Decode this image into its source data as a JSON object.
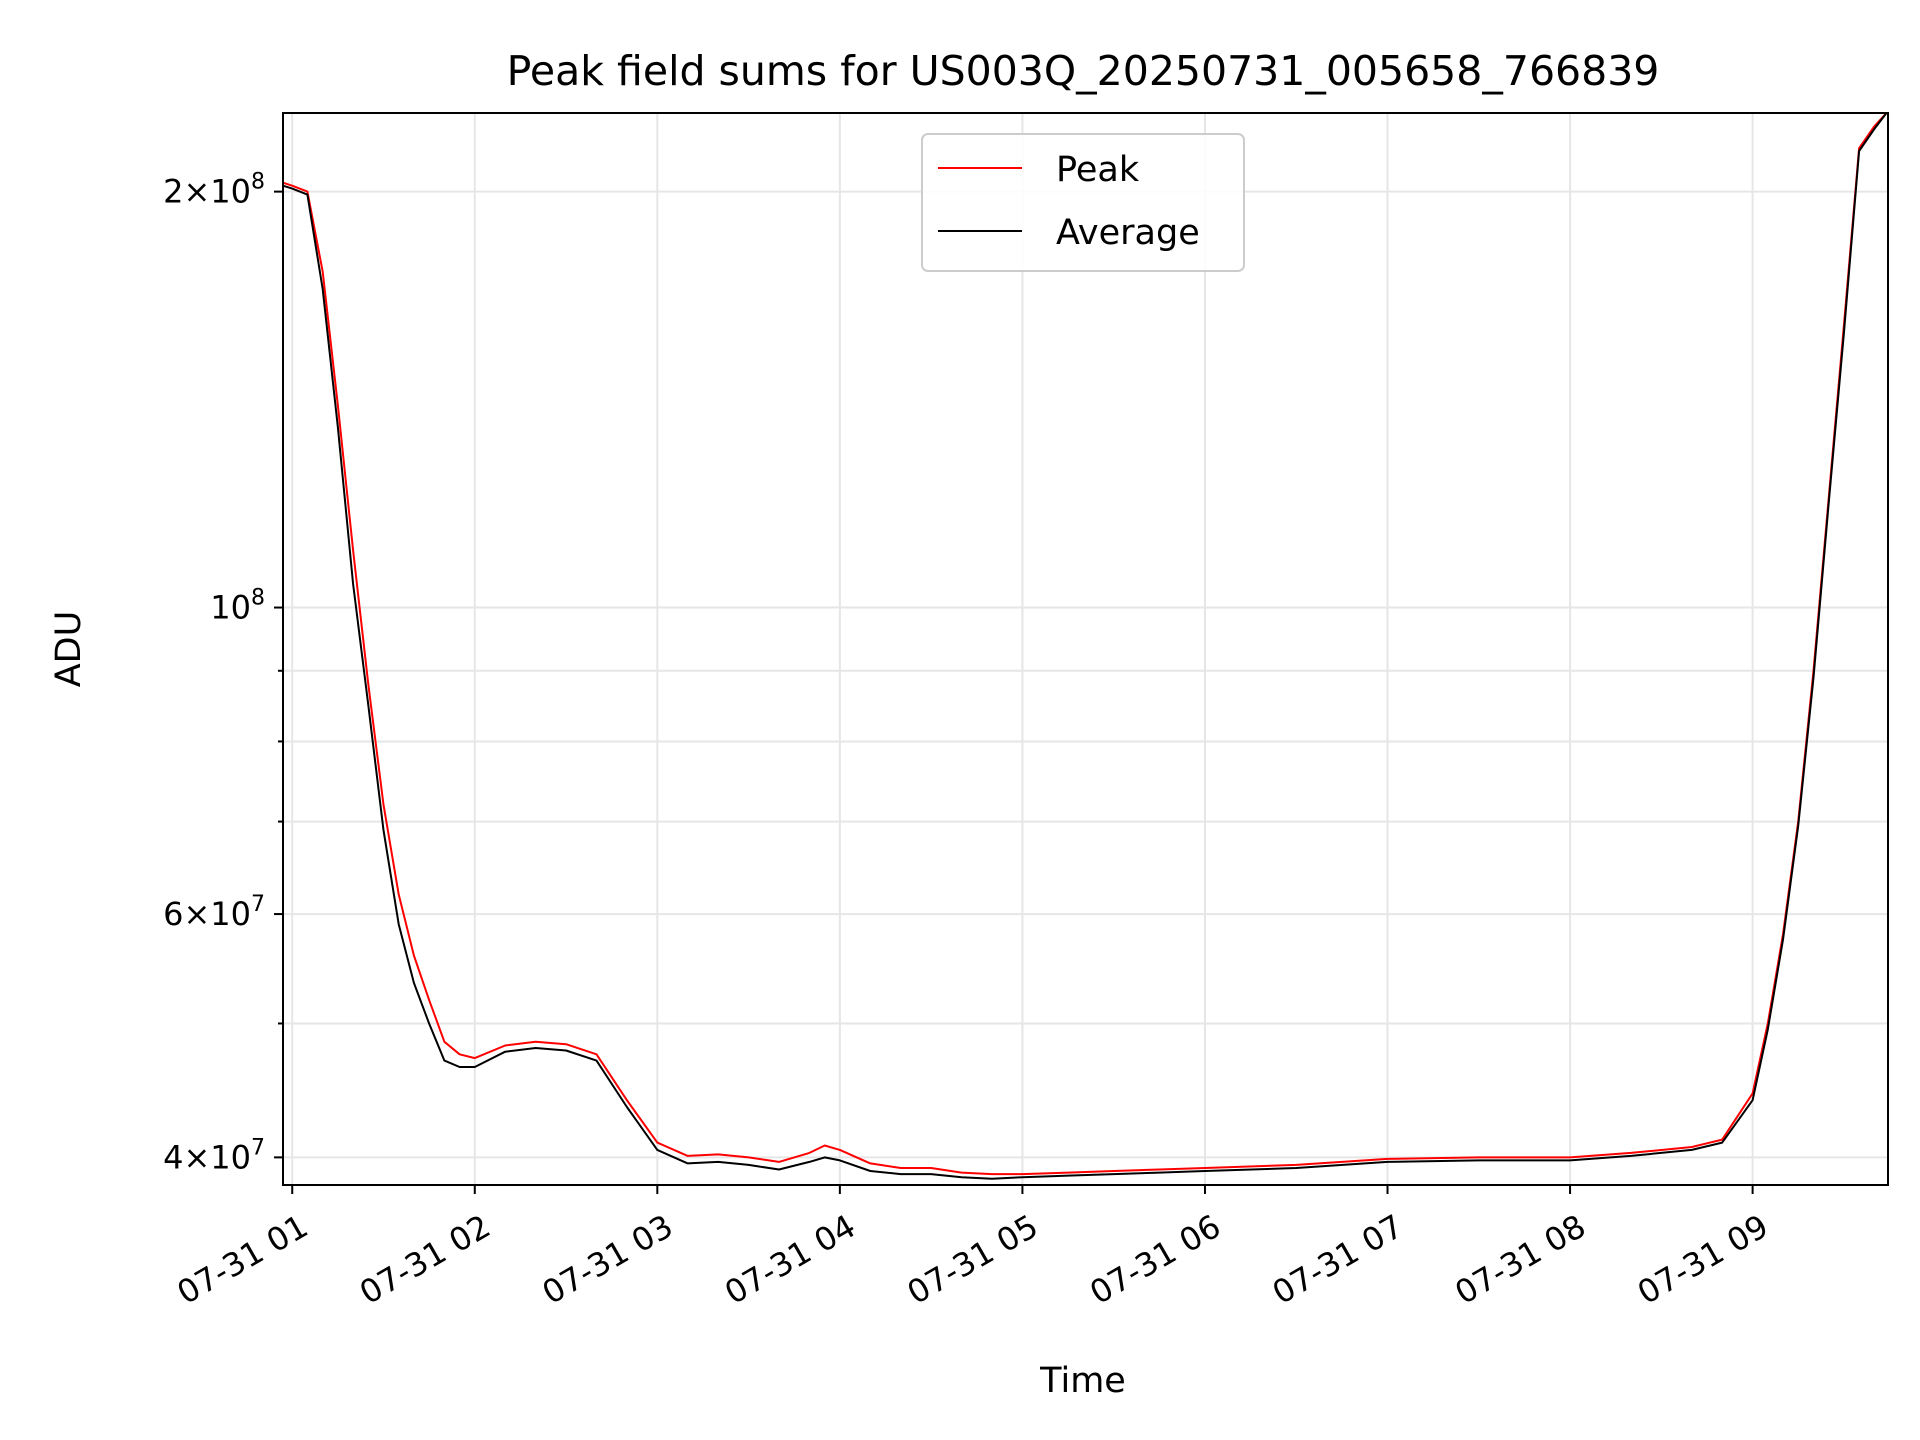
{
  "chart_data": {
    "type": "line",
    "title": "Peak field sums for US003Q_20250731_005658_766839",
    "xlabel": "Time",
    "ylabel": "ADU",
    "yscale": "log",
    "ylim": [
      38200000,
      228000000
    ],
    "xlim": [
      "2025-07-31 00:56:58",
      "2025-07-31 09:44:30"
    ],
    "grid": true,
    "legend_position": "top-center",
    "x_ticks": [
      {
        "t": "2025-07-31 01:00",
        "label": "07-31 01"
      },
      {
        "t": "2025-07-31 02:00",
        "label": "07-31 02"
      },
      {
        "t": "2025-07-31 03:00",
        "label": "07-31 03"
      },
      {
        "t": "2025-07-31 04:00",
        "label": "07-31 04"
      },
      {
        "t": "2025-07-31 05:00",
        "label": "07-31 05"
      },
      {
        "t": "2025-07-31 06:00",
        "label": "07-31 06"
      },
      {
        "t": "2025-07-31 07:00",
        "label": "07-31 07"
      },
      {
        "t": "2025-07-31 08:00",
        "label": "07-31 08"
      },
      {
        "t": "2025-07-31 09:00",
        "label": "07-31 09"
      }
    ],
    "y_ticks_major": [
      {
        "value": 40000000,
        "mant": "4",
        "sup": "7"
      },
      {
        "value": 60000000,
        "mant": "6",
        "sup": "7"
      },
      {
        "value": 100000000,
        "mant": "",
        "sup": "8"
      },
      {
        "value": 200000000,
        "mant": "2",
        "sup": "8"
      }
    ],
    "y_ticks_minor": [
      50000000,
      70000000,
      80000000,
      90000000
    ],
    "series": [
      {
        "name": "Peak",
        "color": "#ff0000",
        "x": [
          "2025-07-31 00:56:58",
          "2025-07-31 01:00",
          "2025-07-31 01:05",
          "2025-07-31 01:10",
          "2025-07-31 01:15",
          "2025-07-31 01:20",
          "2025-07-31 01:25",
          "2025-07-31 01:30",
          "2025-07-31 01:35",
          "2025-07-31 01:40",
          "2025-07-31 01:45",
          "2025-07-31 01:50",
          "2025-07-31 01:55",
          "2025-07-31 02:00",
          "2025-07-31 02:10",
          "2025-07-31 02:20",
          "2025-07-31 02:30",
          "2025-07-31 02:40",
          "2025-07-31 02:50",
          "2025-07-31 03:00",
          "2025-07-31 03:10",
          "2025-07-31 03:20",
          "2025-07-31 03:30",
          "2025-07-31 03:40",
          "2025-07-31 03:50",
          "2025-07-31 03:55",
          "2025-07-31 04:00",
          "2025-07-31 04:10",
          "2025-07-31 04:20",
          "2025-07-31 04:30",
          "2025-07-31 04:40",
          "2025-07-31 04:50",
          "2025-07-31 05:00",
          "2025-07-31 05:15",
          "2025-07-31 05:30",
          "2025-07-31 05:45",
          "2025-07-31 06:00",
          "2025-07-31 06:30",
          "2025-07-31 07:00",
          "2025-07-31 07:30",
          "2025-07-31 08:00",
          "2025-07-31 08:20",
          "2025-07-31 08:40",
          "2025-07-31 08:50",
          "2025-07-31 09:00",
          "2025-07-31 09:05",
          "2025-07-31 09:10",
          "2025-07-31 09:15",
          "2025-07-31 09:20",
          "2025-07-31 09:25",
          "2025-07-31 09:30",
          "2025-07-31 09:35",
          "2025-07-31 09:40",
          "2025-07-31 09:44"
        ],
        "y": [
          203000000,
          202000000,
          200000000,
          175000000,
          140000000,
          110000000,
          88000000,
          72000000,
          62000000,
          56000000,
          52000000,
          48500000,
          47500000,
          47200000,
          48200000,
          48500000,
          48300000,
          47500000,
          44000000,
          41000000,
          40100000,
          40200000,
          40000000,
          39700000,
          40300000,
          40800000,
          40500000,
          39600000,
          39300000,
          39300000,
          39000000,
          38900000,
          38900000,
          39000000,
          39100000,
          39200000,
          39300000,
          39500000,
          39900000,
          40000000,
          40000000,
          40300000,
          40700000,
          41200000,
          44500000,
          50000000,
          58000000,
          70000000,
          90000000,
          120000000,
          160000000,
          215000000,
          223000000,
          228000000
        ]
      },
      {
        "name": "Average",
        "color": "#000000",
        "x": [
          "2025-07-31 00:56:58",
          "2025-07-31 01:00",
          "2025-07-31 01:05",
          "2025-07-31 01:10",
          "2025-07-31 01:15",
          "2025-07-31 01:20",
          "2025-07-31 01:25",
          "2025-07-31 01:30",
          "2025-07-31 01:35",
          "2025-07-31 01:40",
          "2025-07-31 01:45",
          "2025-07-31 01:50",
          "2025-07-31 01:55",
          "2025-07-31 02:00",
          "2025-07-31 02:10",
          "2025-07-31 02:20",
          "2025-07-31 02:30",
          "2025-07-31 02:40",
          "2025-07-31 02:50",
          "2025-07-31 03:00",
          "2025-07-31 03:10",
          "2025-07-31 03:20",
          "2025-07-31 03:30",
          "2025-07-31 03:40",
          "2025-07-31 03:50",
          "2025-07-31 03:55",
          "2025-07-31 04:00",
          "2025-07-31 04:10",
          "2025-07-31 04:20",
          "2025-07-31 04:30",
          "2025-07-31 04:40",
          "2025-07-31 04:50",
          "2025-07-31 05:00",
          "2025-07-31 05:15",
          "2025-07-31 05:30",
          "2025-07-31 05:45",
          "2025-07-31 06:00",
          "2025-07-31 06:30",
          "2025-07-31 07:00",
          "2025-07-31 07:30",
          "2025-07-31 08:00",
          "2025-07-31 08:20",
          "2025-07-31 08:40",
          "2025-07-31 08:50",
          "2025-07-31 09:00",
          "2025-07-31 09:05",
          "2025-07-31 09:10",
          "2025-07-31 09:15",
          "2025-07-31 09:20",
          "2025-07-31 09:25",
          "2025-07-31 09:30",
          "2025-07-31 09:35",
          "2025-07-31 09:40",
          "2025-07-31 09:44"
        ],
        "y": [
          202000000,
          201000000,
          199000000,
          170000000,
          135000000,
          104000000,
          85000000,
          69000000,
          59000000,
          53500000,
          50000000,
          47000000,
          46500000,
          46500000,
          47700000,
          48000000,
          47800000,
          47000000,
          43500000,
          40500000,
          39600000,
          39700000,
          39500000,
          39200000,
          39700000,
          40000000,
          39800000,
          39100000,
          38900000,
          38900000,
          38700000,
          38600000,
          38700000,
          38800000,
          38900000,
          39000000,
          39100000,
          39300000,
          39700000,
          39800000,
          39800000,
          40100000,
          40500000,
          41000000,
          44000000,
          49500000,
          57500000,
          69500000,
          89000000,
          119000000,
          158000000,
          214000000,
          222000000,
          228000000
        ]
      }
    ]
  }
}
